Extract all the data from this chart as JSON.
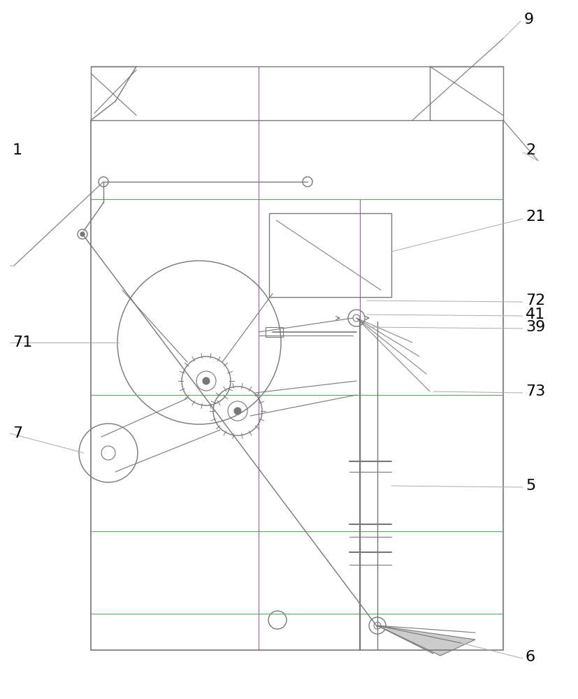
{
  "bg": "#ffffff",
  "lc": "#aaaaaa",
  "dc": "#777777",
  "gc": "#55aa55",
  "mc": "#aa55aa",
  "fig_w": 8.28,
  "fig_h": 10.0,
  "dpi": 100,
  "labels": {
    "9": [
      750,
      28,
      "left"
    ],
    "1": [
      18,
      215,
      "left"
    ],
    "2": [
      752,
      215,
      "left"
    ],
    "21": [
      752,
      310,
      "left"
    ],
    "72": [
      752,
      430,
      "left"
    ],
    "41": [
      752,
      450,
      "left"
    ],
    "39": [
      752,
      468,
      "left"
    ],
    "71": [
      18,
      490,
      "left"
    ],
    "7": [
      18,
      620,
      "left"
    ],
    "73": [
      752,
      560,
      "left"
    ],
    "5": [
      752,
      695,
      "left"
    ],
    "6": [
      752,
      940,
      "left"
    ]
  }
}
